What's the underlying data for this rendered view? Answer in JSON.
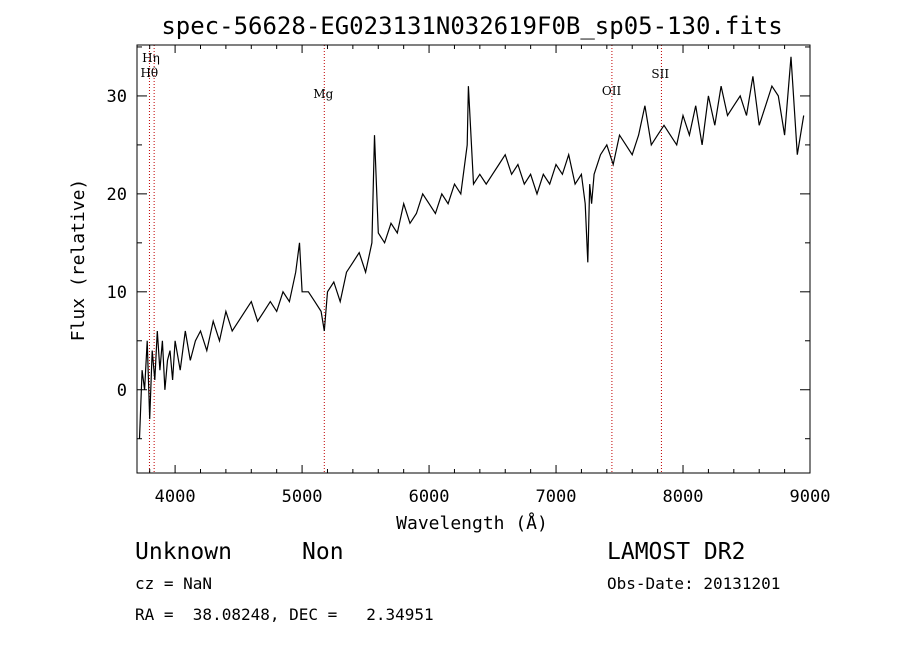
{
  "chart_data": {
    "type": "line",
    "title": "spec-56628-EG023131N032619F0B_sp05-130.fits",
    "xlabel": "Wavelength (Å)",
    "ylabel": "Flux (relative)",
    "xlim": [
      3700,
      9000
    ],
    "ylim": [
      -8.5,
      35.2
    ],
    "xticks": [
      4000,
      5000,
      6000,
      7000,
      8000,
      9000
    ],
    "yticks": [
      0,
      10,
      20,
      30
    ],
    "grid": false,
    "line_markers": [
      {
        "label": "Hη",
        "x": 3835
      },
      {
        "label": "Hθ",
        "x": 3798
      },
      {
        "label": "Mg",
        "x": 5175
      },
      {
        "label": "OII",
        "x": 7440
      },
      {
        "label": "SII",
        "x": 7830
      }
    ],
    "series": [
      {
        "x": [
          3720,
          3740,
          3760,
          3780,
          3800,
          3820,
          3840,
          3860,
          3880,
          3900,
          3920,
          3940,
          3960,
          3980,
          4000,
          4040,
          4080,
          4120,
          4160,
          4200,
          4250,
          4300,
          4350,
          4400,
          4450,
          4500,
          4550,
          4600,
          4650,
          4700,
          4750,
          4800,
          4850,
          4900,
          4950,
          4980,
          5000,
          5050,
          5100,
          5150,
          5175,
          5200,
          5250,
          5300,
          5350,
          5400,
          5450,
          5500,
          5550,
          5570,
          5600,
          5650,
          5700,
          5750,
          5800,
          5850,
          5900,
          5950,
          6000,
          6050,
          6100,
          6150,
          6200,
          6250,
          6300,
          6310,
          6350,
          6400,
          6450,
          6500,
          6550,
          6600,
          6650,
          6700,
          6750,
          6800,
          6850,
          6900,
          6950,
          7000,
          7050,
          7100,
          7150,
          7200,
          7230,
          7250,
          7265,
          7280,
          7300,
          7350,
          7400,
          7450,
          7500,
          7550,
          7600,
          7650,
          7700,
          7750,
          7800,
          7850,
          7900,
          7950,
          8000,
          8050,
          8100,
          8150,
          8200,
          8250,
          8300,
          8350,
          8400,
          8450,
          8500,
          8550,
          8600,
          8650,
          8700,
          8750,
          8800,
          8850,
          8900,
          8950
        ],
        "y": [
          -5,
          2,
          0,
          5,
          -3,
          4,
          1,
          6,
          2,
          5,
          0,
          3,
          4,
          1,
          5,
          2,
          6,
          3,
          5,
          6,
          4,
          7,
          5,
          8,
          6,
          7,
          8,
          9,
          7,
          8,
          9,
          8,
          10,
          9,
          12,
          15,
          10,
          10,
          9,
          8,
          6,
          10,
          11,
          9,
          12,
          13,
          14,
          12,
          15,
          26,
          16,
          15,
          17,
          16,
          19,
          17,
          18,
          20,
          19,
          18,
          20,
          19,
          21,
          20,
          25,
          31,
          21,
          22,
          21,
          22,
          23,
          24,
          22,
          23,
          21,
          22,
          20,
          22,
          21,
          23,
          22,
          24,
          21,
          22,
          19,
          13,
          21,
          19,
          22,
          24,
          25,
          23,
          26,
          25,
          24,
          26,
          29,
          25,
          26,
          27,
          26,
          25,
          28,
          26,
          29,
          25,
          30,
          27,
          31,
          28,
          29,
          30,
          28,
          32,
          27,
          29,
          31,
          30,
          26,
          34,
          24,
          28
        ]
      }
    ]
  },
  "info": {
    "class": "Unknown",
    "subclass": "Non",
    "cz": "cz = NaN",
    "radec": "RA =  38.08248, DEC =   2.34951",
    "survey": "LAMOST DR2",
    "obsdate": "Obs-Date: 20131201"
  }
}
